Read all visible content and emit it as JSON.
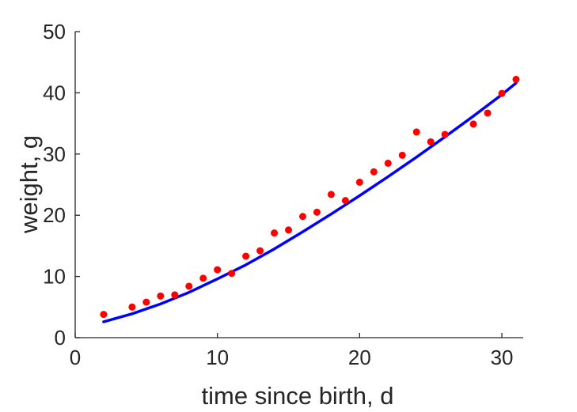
{
  "chart_data": {
    "type": "scatter",
    "title": "",
    "xlabel": "time since birth, d",
    "ylabel": "weight, g",
    "xlim": [
      0,
      31.5
    ],
    "ylim": [
      0,
      50
    ],
    "xticks": [
      0,
      10,
      20,
      30
    ],
    "xtick_labels": [
      "0",
      "10",
      "20",
      "30"
    ],
    "yticks": [
      0,
      10,
      20,
      30,
      40,
      50
    ],
    "ytick_labels": [
      "0",
      "10",
      "20",
      "30",
      "40",
      "50"
    ],
    "grid": false,
    "legend": "none",
    "colors": {
      "points": "#ff0000",
      "curve": "#0000ff",
      "axes": "#262626"
    },
    "series": [
      {
        "kind": "scatter",
        "x": [
          2,
          4,
          5,
          6,
          7,
          8,
          9,
          10,
          11,
          12,
          13,
          14,
          15,
          16,
          17,
          18,
          19,
          20,
          21,
          22,
          23,
          24,
          25,
          26,
          28,
          29,
          30,
          31
        ],
        "y": [
          3.8,
          5.0,
          5.8,
          6.8,
          7.0,
          8.4,
          9.7,
          11.1,
          10.5,
          13.3,
          14.2,
          17.1,
          17.6,
          19.8,
          20.5,
          23.4,
          22.4,
          25.4,
          27.1,
          28.5,
          29.8,
          33.6,
          32.0,
          33.2,
          34.9,
          36.7,
          39.9,
          42.2
        ]
      },
      {
        "kind": "line",
        "x": [
          2,
          4,
          6,
          8,
          10,
          12,
          14,
          16,
          18,
          20,
          22,
          24,
          26,
          28,
          30,
          31
        ],
        "y": [
          2.6,
          3.9,
          5.5,
          7.4,
          9.6,
          11.9,
          14.5,
          17.3,
          20.2,
          23.2,
          26.3,
          29.5,
          32.8,
          36.2,
          39.7,
          41.6
        ]
      }
    ]
  }
}
